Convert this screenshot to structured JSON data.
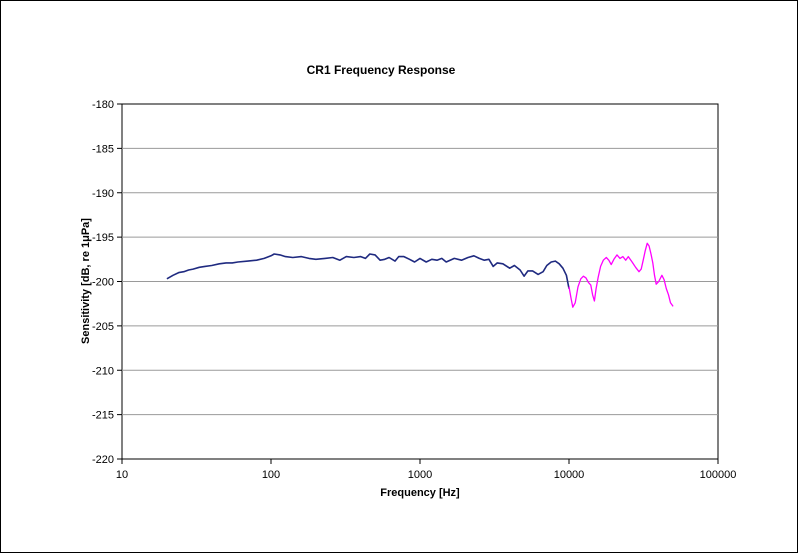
{
  "chart_data": {
    "type": "line",
    "title": "CR1 Frequency Response",
    "xlabel": "Frequency [Hz]",
    "ylabel_pre": "Sensitivity [dB, re 1",
    "ylabel_mu": "μ",
    "ylabel_post": "Pa]",
    "x_scale": "log",
    "xlim": [
      10,
      100000
    ],
    "ylim": [
      -220,
      -180
    ],
    "x_ticks": [
      10,
      100,
      1000,
      10000,
      100000
    ],
    "x_tick_labels": [
      "10",
      "100",
      "1000",
      "10000",
      "100000"
    ],
    "y_ticks": [
      -180,
      -185,
      -190,
      -195,
      -200,
      -205,
      -210,
      -215,
      -220
    ],
    "y_tick_labels": [
      "-180",
      "-185",
      "-190",
      "-195",
      "-200",
      "-205",
      "-210",
      "-215",
      "-220"
    ],
    "grid": "horizontal",
    "legend": "none",
    "series": [
      {
        "color": "#1f2a80",
        "points": [
          [
            20,
            -199.7
          ],
          [
            22,
            -199.3
          ],
          [
            24,
            -199.0
          ],
          [
            26,
            -198.9
          ],
          [
            28,
            -198.7
          ],
          [
            30,
            -198.6
          ],
          [
            33,
            -198.4
          ],
          [
            36,
            -198.3
          ],
          [
            40,
            -198.2
          ],
          [
            45,
            -198.0
          ],
          [
            50,
            -197.9
          ],
          [
            55,
            -197.9
          ],
          [
            60,
            -197.8
          ],
          [
            70,
            -197.7
          ],
          [
            80,
            -197.6
          ],
          [
            90,
            -197.4
          ],
          [
            100,
            -197.1
          ],
          [
            105,
            -196.9
          ],
          [
            115,
            -197.0
          ],
          [
            125,
            -197.2
          ],
          [
            140,
            -197.3
          ],
          [
            160,
            -197.2
          ],
          [
            180,
            -197.4
          ],
          [
            200,
            -197.5
          ],
          [
            230,
            -197.4
          ],
          [
            260,
            -197.3
          ],
          [
            290,
            -197.6
          ],
          [
            320,
            -197.2
          ],
          [
            360,
            -197.3
          ],
          [
            400,
            -197.2
          ],
          [
            430,
            -197.4
          ],
          [
            460,
            -196.9
          ],
          [
            500,
            -197.0
          ],
          [
            540,
            -197.6
          ],
          [
            580,
            -197.5
          ],
          [
            620,
            -197.3
          ],
          [
            680,
            -197.7
          ],
          [
            720,
            -197.2
          ],
          [
            780,
            -197.2
          ],
          [
            850,
            -197.5
          ],
          [
            920,
            -197.8
          ],
          [
            1000,
            -197.4
          ],
          [
            1100,
            -197.8
          ],
          [
            1200,
            -197.5
          ],
          [
            1300,
            -197.6
          ],
          [
            1400,
            -197.4
          ],
          [
            1500,
            -197.8
          ],
          [
            1700,
            -197.4
          ],
          [
            1900,
            -197.6
          ],
          [
            2100,
            -197.3
          ],
          [
            2300,
            -197.1
          ],
          [
            2500,
            -197.4
          ],
          [
            2700,
            -197.6
          ],
          [
            2900,
            -197.5
          ],
          [
            3100,
            -198.3
          ],
          [
            3300,
            -197.9
          ],
          [
            3600,
            -198.0
          ],
          [
            4000,
            -198.5
          ],
          [
            4300,
            -198.2
          ],
          [
            4700,
            -198.7
          ],
          [
            5000,
            -199.4
          ],
          [
            5300,
            -198.8
          ],
          [
            5700,
            -198.8
          ],
          [
            6200,
            -199.2
          ],
          [
            6700,
            -198.9
          ],
          [
            7100,
            -198.2
          ],
          [
            7600,
            -197.8
          ],
          [
            8100,
            -197.7
          ],
          [
            8600,
            -198.0
          ],
          [
            9100,
            -198.5
          ],
          [
            9600,
            -199.3
          ],
          [
            10000,
            -200.8
          ]
        ]
      },
      {
        "color": "#ff00ff",
        "points": [
          [
            10000,
            -200.6
          ],
          [
            10300,
            -201.8
          ],
          [
            10600,
            -202.9
          ],
          [
            11000,
            -202.4
          ],
          [
            11500,
            -200.6
          ],
          [
            12000,
            -199.7
          ],
          [
            12500,
            -199.4
          ],
          [
            13000,
            -199.6
          ],
          [
            13500,
            -200.1
          ],
          [
            14000,
            -200.4
          ],
          [
            14400,
            -201.5
          ],
          [
            14800,
            -202.2
          ],
          [
            15200,
            -200.8
          ],
          [
            15700,
            -199.5
          ],
          [
            16300,
            -198.3
          ],
          [
            17000,
            -197.6
          ],
          [
            17800,
            -197.3
          ],
          [
            18500,
            -197.6
          ],
          [
            19200,
            -198.1
          ],
          [
            20000,
            -197.5
          ],
          [
            21000,
            -197.0
          ],
          [
            22000,
            -197.4
          ],
          [
            23000,
            -197.2
          ],
          [
            24000,
            -197.6
          ],
          [
            25000,
            -197.2
          ],
          [
            26500,
            -197.8
          ],
          [
            28000,
            -198.4
          ],
          [
            29500,
            -198.9
          ],
          [
            30500,
            -198.6
          ],
          [
            31500,
            -197.6
          ],
          [
            32500,
            -196.5
          ],
          [
            33500,
            -195.7
          ],
          [
            34500,
            -196.0
          ],
          [
            35500,
            -196.9
          ],
          [
            36500,
            -197.9
          ],
          [
            37500,
            -199.3
          ],
          [
            38500,
            -200.3
          ],
          [
            40000,
            -200.0
          ],
          [
            42000,
            -199.3
          ],
          [
            43500,
            -199.8
          ],
          [
            45000,
            -200.8
          ],
          [
            46500,
            -201.5
          ],
          [
            48000,
            -202.4
          ],
          [
            50000,
            -202.8
          ]
        ]
      }
    ]
  }
}
